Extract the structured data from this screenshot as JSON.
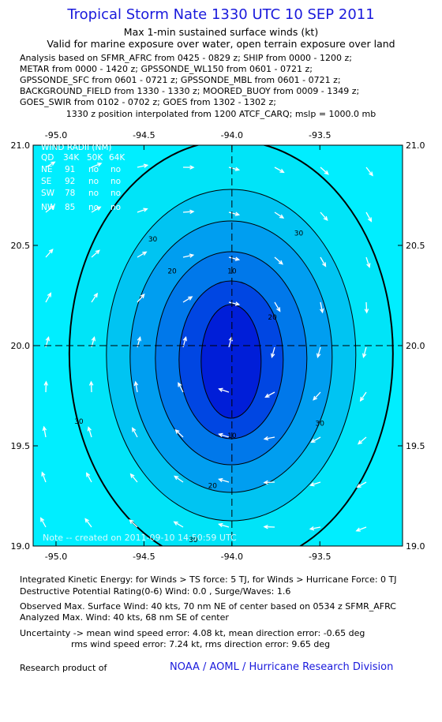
{
  "header": {
    "title": "Tropical Storm Nate 1330 UTC 10 SEP 2011",
    "subtitle": "Max 1-min sustained surface winds (kt)",
    "valid_line": "Valid for marine exposure over water, open terrain exposure over land",
    "analysis_lines": [
      "Analysis based on SFMR_AFRC from 0425 - 0829 z; SHIP from 0000 - 1200 z;",
      "METAR from 0000 - 1420 z; GPSSONDE_WL150 from 0601 - 0721 z;",
      "GPSSONDE_SFC from 0601 - 0721 z; GPSSONDE_MBL from 0601 - 0721 z;",
      "BACKGROUND_FIELD from 1330 - 1330 z; MOORED_BUOY from 0009 - 1349 z;",
      "GOES_SWIR from 0102 - 0702 z; GOES from 1302 - 1302 z;"
    ],
    "interp_line": "1330 z position interpolated from 1200 ATCF_CARQ; mslp = 1000.0 mb"
  },
  "chart_data": {
    "type": "contour",
    "x_ticks": [
      "-95.0",
      "-94.5",
      "-94.0",
      "-93.5"
    ],
    "x_tick_values": [
      -95.0,
      -94.5,
      -94.0,
      -93.5
    ],
    "y_ticks": [
      "21.0",
      "20.5",
      "20.0",
      "19.5",
      "19.0"
    ],
    "y_tick_values": [
      21.0,
      20.5,
      20.0,
      19.5,
      19.0
    ],
    "xlim": [
      -95.13,
      -93.03
    ],
    "ylim": [
      19.0,
      21.0
    ],
    "center": {
      "lon": -94.0,
      "lat": 20.0
    },
    "contour_levels": [
      30,
      20,
      10
    ],
    "contour_labels": [
      {
        "text": "30",
        "lon": -94.45,
        "lat": 20.52
      },
      {
        "text": "30",
        "lon": -93.62,
        "lat": 20.55
      },
      {
        "text": "30",
        "lon": -94.87,
        "lat": 19.61
      },
      {
        "text": "30",
        "lon": -93.5,
        "lat": 19.6
      },
      {
        "text": "30",
        "lon": -94.22,
        "lat": 19.02
      },
      {
        "text": "20",
        "lon": -94.34,
        "lat": 20.36
      },
      {
        "text": "20",
        "lon": -93.77,
        "lat": 20.13
      },
      {
        "text": "20",
        "lon": -94.11,
        "lat": 19.29
      },
      {
        "text": "10",
        "lon": -94.0,
        "lat": 20.36
      },
      {
        "text": "10",
        "lon": -94.0,
        "lat": 19.54
      }
    ],
    "wind_radii": {
      "title": "WIND RADII (NM)",
      "columns": [
        "QD",
        "34K",
        "50K",
        "64K"
      ],
      "rows": [
        [
          "NE",
          "91",
          "no",
          "no"
        ],
        [
          "SE",
          "92",
          "no",
          "no"
        ],
        [
          "SW",
          "78",
          "no",
          "no"
        ],
        [
          "NW",
          "85",
          "no",
          "no"
        ]
      ]
    },
    "note": "Note -- created on 2011-09-10 14:50:59 UTC",
    "colors": {
      "background": "#00eeff",
      "levels": [
        "#00e4f8",
        "#00c4f2",
        "#009ef0",
        "#0078ea",
        "#0046e2",
        "#001ed8"
      ],
      "outline": "#000000",
      "arrows": "#ffffff"
    }
  },
  "footer": {
    "ike": "Integrated Kinetic Energy:  for Winds > TS force: 5 TJ,  for Winds > Hurricane Force: 0 TJ",
    "dpr": "Destructive Potential Rating(0-6)   Wind: 0.0 , Surge/Waves: 1.6",
    "obs_max": "Observed Max. Surface Wind: 40 kts, 70 nm NE of center based on 0534 z SFMR_AFRC",
    "ana_max": "Analyzed Max. Wind: 40 kts, 68 nm SE of center",
    "unc1": "Uncertainty -> mean wind speed error: 4.08 kt,   mean direction error:  -0.65 deg",
    "unc2": "rms wind speed error: 7.24 kt,  rms direction error: 9.65 deg",
    "research_label": "Research product of",
    "research_org": "NOAA / AOML / Hurricane Research Division"
  }
}
